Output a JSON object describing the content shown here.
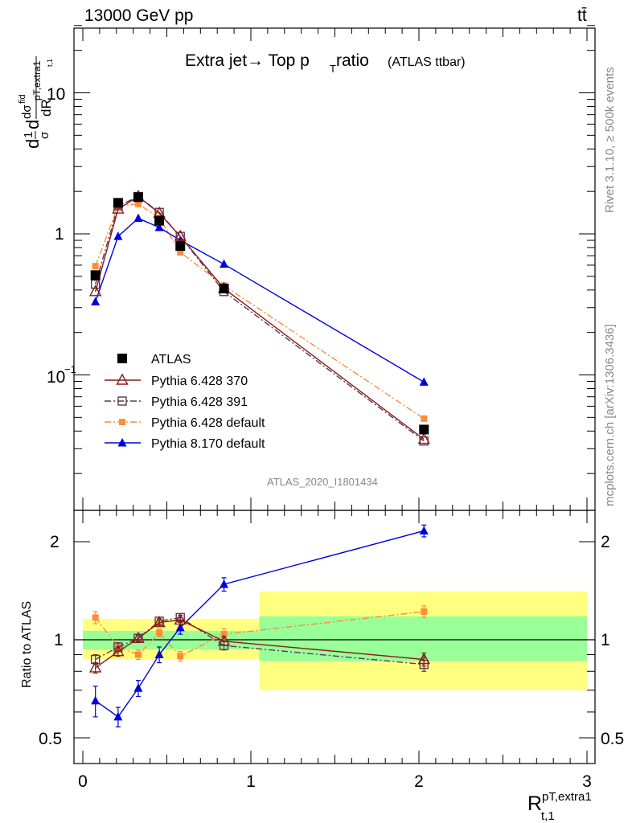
{
  "header": {
    "energy": "13000 GeV pp",
    "process": "tt̄"
  },
  "colors": {
    "atlas": "#000000",
    "py6_370": "#8b1a1a",
    "py6_391": "#5a3a50",
    "py6_default": "#ff8c3a",
    "py8_default": "#0000dd",
    "band_yellow": "#ffff80",
    "band_green": "#99ff99"
  },
  "chart_data": [
    {
      "type": "line",
      "panel": "main",
      "title": "Extra jet→ Top p",
      "title_sub": "T",
      "title_tail": " ratio",
      "title_note": "(ATLAS ttbar)",
      "ylabel": "d¹⁄σ dσfid / dR pT,extra1 t,1",
      "yscale": "log",
      "ylim": [
        0.012,
        30
      ],
      "xlim": [
        -0.05,
        3.0
      ],
      "ytick_labels": [
        {
          "value": 0.1,
          "base": "10",
          "exp": "−1"
        },
        {
          "value": 1,
          "base": "1",
          "exp": ""
        },
        {
          "value": 10,
          "base": "10",
          "exp": ""
        }
      ],
      "series": [
        {
          "name": "ATLAS",
          "key": "atlas",
          "marker": "square-filled",
          "line": "none",
          "x": [
            0.075,
            0.21,
            0.33,
            0.455,
            0.58,
            0.84,
            2.03
          ],
          "y": [
            0.51,
            1.66,
            1.82,
            1.24,
            0.82,
            0.41,
            0.041
          ]
        },
        {
          "name": "Pythia 6.428 370",
          "key": "py6_370",
          "marker": "triangle-open",
          "line": "solid",
          "x": [
            0.075,
            0.21,
            0.33,
            0.455,
            0.58,
            0.84,
            2.03
          ],
          "y": [
            0.39,
            1.5,
            1.84,
            1.4,
            0.96,
            0.41,
            0.035
          ]
        },
        {
          "name": "Pythia 6.428 391",
          "key": "py6_391",
          "marker": "square-open",
          "line": "dashdot",
          "x": [
            0.075,
            0.21,
            0.33,
            0.455,
            0.58,
            0.84,
            2.03
          ],
          "y": [
            0.44,
            1.58,
            1.84,
            1.42,
            0.96,
            0.39,
            0.034
          ]
        },
        {
          "name": "Pythia 6.428 default",
          "key": "py6_default",
          "marker": "square-filled-small",
          "line": "dashdot",
          "x": [
            0.075,
            0.21,
            0.33,
            0.455,
            0.58,
            0.84,
            2.03
          ],
          "y": [
            0.59,
            1.58,
            1.63,
            1.3,
            0.74,
            0.43,
            0.049
          ]
        },
        {
          "name": "Pythia 8.170 default",
          "key": "py8_default",
          "marker": "triangle-filled",
          "line": "solid",
          "x": [
            0.075,
            0.21,
            0.33,
            0.455,
            0.58,
            0.84,
            2.03
          ],
          "y": [
            0.33,
            0.96,
            1.29,
            1.11,
            0.9,
            0.61,
            0.089
          ]
        }
      ],
      "analysis_label": "ATLAS_2020_I1801434"
    },
    {
      "type": "line",
      "panel": "ratio",
      "ylabel": "Ratio to ATLAS",
      "ylim": [
        0.38,
        2.35
      ],
      "xlim": [
        -0.05,
        3.0
      ],
      "xlabel_main": "R",
      "xlabel_sup": "pT,extra1",
      "xlabel_sub": "t,1",
      "xticks": [
        0,
        1,
        2,
        3
      ],
      "yticks": [
        {
          "value": 0.5,
          "label": "0.5"
        },
        {
          "value": 1,
          "label": "1"
        },
        {
          "value": 2,
          "label": "2"
        }
      ],
      "bins": [
        {
          "lo": 0.0,
          "hi": 0.15,
          "green": [
            0.935,
            1.065
          ],
          "yellow": [
            0.87,
            1.16
          ]
        },
        {
          "lo": 0.15,
          "hi": 0.27,
          "green": [
            0.935,
            1.065
          ],
          "yellow": [
            0.87,
            1.16
          ]
        },
        {
          "lo": 0.27,
          "hi": 0.39,
          "green": [
            0.935,
            1.065
          ],
          "yellow": [
            0.87,
            1.16
          ]
        },
        {
          "lo": 0.39,
          "hi": 0.52,
          "green": [
            0.935,
            1.065
          ],
          "yellow": [
            0.87,
            1.16
          ]
        },
        {
          "lo": 0.52,
          "hi": 0.65,
          "green": [
            0.935,
            1.065
          ],
          "yellow": [
            0.87,
            1.16
          ]
        },
        {
          "lo": 0.65,
          "hi": 1.05,
          "green": [
            0.935,
            1.065
          ],
          "yellow": [
            0.87,
            1.16
          ]
        },
        {
          "lo": 1.05,
          "hi": 3.0,
          "green": [
            0.86,
            1.18
          ],
          "yellow": [
            0.7,
            1.41
          ]
        }
      ],
      "series": [
        {
          "name": "Pythia 6.428 370",
          "key": "py6_370",
          "marker": "triangle-open",
          "line": "solid",
          "x": [
            0.075,
            0.21,
            0.33,
            0.455,
            0.58,
            0.84,
            2.03
          ],
          "y": [
            0.82,
            0.92,
            1.01,
            1.13,
            1.15,
            0.99,
            0.87
          ],
          "err": [
            0.03,
            0.03,
            0.02,
            0.02,
            0.02,
            0.03,
            0.04
          ]
        },
        {
          "name": "Pythia 6.428 391",
          "key": "py6_391",
          "marker": "square-open",
          "line": "dashdot",
          "x": [
            0.075,
            0.21,
            0.33,
            0.455,
            0.58,
            0.84,
            2.03
          ],
          "y": [
            0.87,
            0.95,
            1.01,
            1.14,
            1.17,
            0.96,
            0.84
          ],
          "err": [
            0.03,
            0.03,
            0.02,
            0.02,
            0.02,
            0.03,
            0.04
          ]
        },
        {
          "name": "Pythia 6.428 default",
          "key": "py6_default",
          "marker": "square-filled-small",
          "line": "dashdot",
          "x": [
            0.075,
            0.21,
            0.33,
            0.455,
            0.58,
            0.84,
            2.03
          ],
          "y": [
            1.17,
            0.95,
            0.9,
            1.05,
            0.89,
            1.04,
            1.22
          ],
          "err": [
            0.05,
            0.03,
            0.03,
            0.03,
            0.03,
            0.04,
            0.05
          ]
        },
        {
          "name": "Pythia 8.170 default",
          "key": "py8_default",
          "marker": "triangle-filled",
          "line": "solid",
          "x": [
            0.075,
            0.21,
            0.33,
            0.455,
            0.58,
            0.84,
            2.03
          ],
          "y": [
            0.65,
            0.58,
            0.71,
            0.9,
            1.09,
            1.48,
            2.16
          ],
          "err": [
            0.07,
            0.04,
            0.04,
            0.05,
            0.05,
            0.07,
            0.09
          ]
        }
      ]
    }
  ],
  "side_labels": {
    "rivet": "Rivet 3.1.10, ≥ 500k events",
    "mcplots": "mcplots.cern.ch [arXiv:1306.3436]"
  }
}
